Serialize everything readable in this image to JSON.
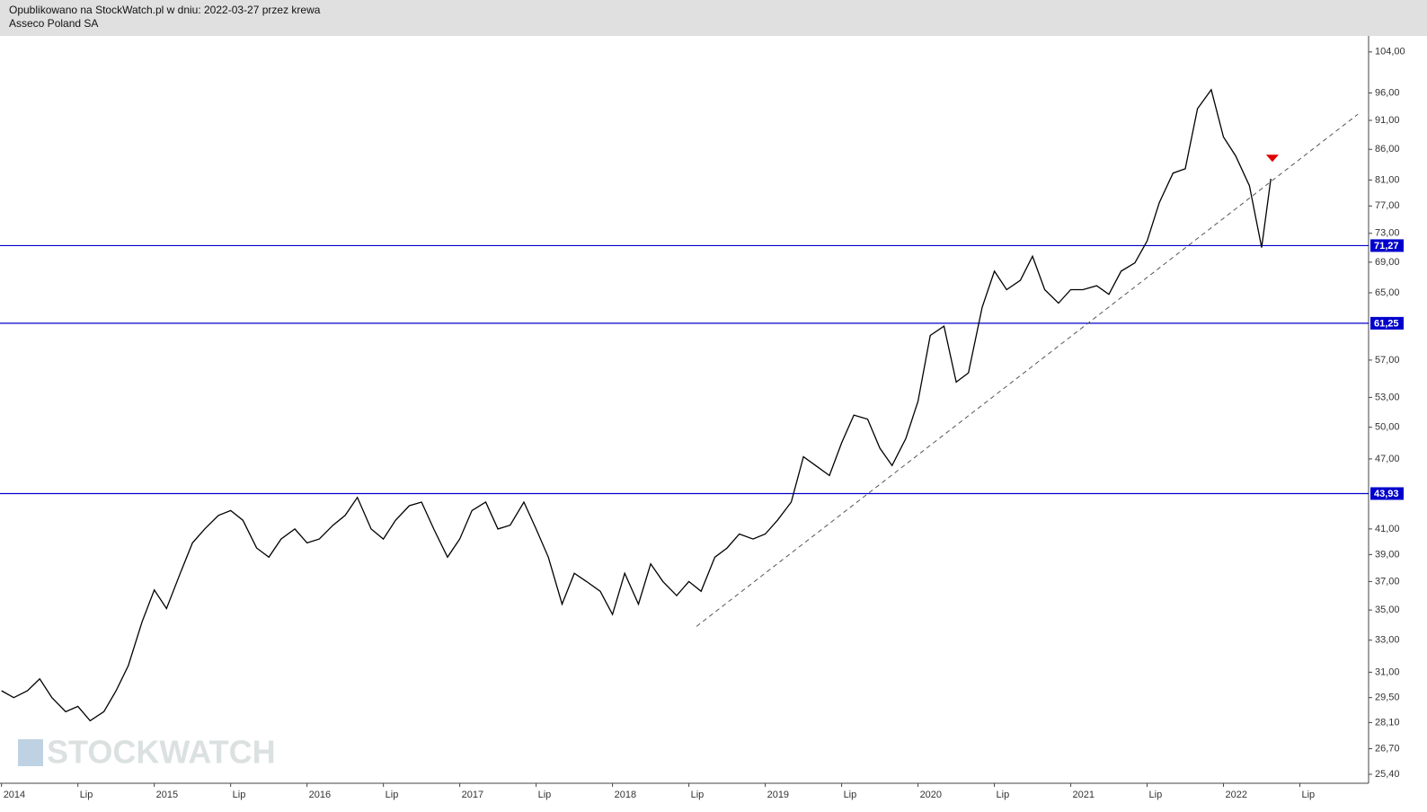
{
  "header": {
    "published": "Opublikowano na StockWatch.pl w dniu: 2022-03-27 przez krewa",
    "instrument": "Asseco Poland SA"
  },
  "watermark": "STOCKWATCH",
  "chart_data": {
    "type": "line",
    "log_scale": true,
    "color": "#000000",
    "x": [
      2014.0,
      2014.08,
      2014.17,
      2014.25,
      2014.33,
      2014.42,
      2014.5,
      2014.58,
      2014.67,
      2014.75,
      2014.83,
      2014.92,
      2015.0,
      2015.08,
      2015.17,
      2015.25,
      2015.33,
      2015.42,
      2015.5,
      2015.58,
      2015.67,
      2015.75,
      2015.83,
      2015.92,
      2016.0,
      2016.08,
      2016.17,
      2016.25,
      2016.33,
      2016.42,
      2016.5,
      2016.58,
      2016.67,
      2016.75,
      2016.83,
      2016.92,
      2017.0,
      2017.08,
      2017.17,
      2017.25,
      2017.33,
      2017.42,
      2017.5,
      2017.58,
      2017.67,
      2017.75,
      2017.83,
      2017.92,
      2018.0,
      2018.08,
      2018.17,
      2018.25,
      2018.33,
      2018.42,
      2018.5,
      2018.58,
      2018.67,
      2018.75,
      2018.83,
      2018.92,
      2019.0,
      2019.08,
      2019.17,
      2019.25,
      2019.33,
      2019.42,
      2019.5,
      2019.58,
      2019.67,
      2019.75,
      2019.83,
      2019.92,
      2020.0,
      2020.08,
      2020.17,
      2020.25,
      2020.33,
      2020.42,
      2020.5,
      2020.58,
      2020.67,
      2020.75,
      2020.83,
      2020.92,
      2021.0,
      2021.08,
      2021.17,
      2021.25,
      2021.33,
      2021.42,
      2021.5,
      2021.58,
      2021.67,
      2021.75,
      2021.83,
      2021.92,
      2022.0,
      2022.08,
      2022.17,
      2022.25,
      2022.31
    ],
    "values": [
      29.9,
      29.5,
      29.9,
      30.6,
      29.5,
      28.7,
      29,
      28.2,
      28.7,
      29.9,
      31.4,
      34.2,
      36.4,
      35.1,
      37.6,
      39.9,
      41,
      42.1,
      42.5,
      41.7,
      39.5,
      38.8,
      40.2,
      41,
      39.9,
      40.2,
      41.3,
      42.1,
      43.6,
      41,
      40.2,
      41.7,
      42.9,
      43.2,
      41,
      38.8,
      40.2,
      42.5,
      43.2,
      41,
      41.3,
      43.2,
      41,
      38.8,
      35.4,
      37.6,
      37,
      36.3,
      34.7,
      37.6,
      35.4,
      38.3,
      37,
      36,
      37,
      36.3,
      38.8,
      39.5,
      40.6,
      40.2,
      40.6,
      41.7,
      43.2,
      47.2,
      46.4,
      45.5,
      48.5,
      51.2,
      50.8,
      48,
      46.4,
      48.9,
      52.6,
      59.8,
      60.9,
      54.6,
      55.6,
      63.2,
      67.8,
      65.4,
      66.6,
      69.8,
      65.4,
      63.7,
      65.4,
      65.4,
      65.9,
      64.8,
      67.8,
      68.9,
      71.9,
      77.5,
      82.1,
      82.8,
      93.1,
      96.6,
      88.1,
      84.9,
      80.1,
      71,
      81.2
    ],
    "xlim": [
      2013.99,
      2022.95
    ],
    "ylim": [
      24.96,
      107.3
    ],
    "xticks": [
      {
        "value": 2014,
        "label": "2014"
      },
      {
        "value": 2014.5,
        "label": "Lip"
      },
      {
        "value": 2015,
        "label": "2015"
      },
      {
        "value": 2015.5,
        "label": "Lip"
      },
      {
        "value": 2016,
        "label": "2016"
      },
      {
        "value": 2016.5,
        "label": "Lip"
      },
      {
        "value": 2017,
        "label": "2017"
      },
      {
        "value": 2017.5,
        "label": "Lip"
      },
      {
        "value": 2018,
        "label": "2018"
      },
      {
        "value": 2018.5,
        "label": "Lip"
      },
      {
        "value": 2019,
        "label": "2019"
      },
      {
        "value": 2019.5,
        "label": "Lip"
      },
      {
        "value": 2020,
        "label": "2020"
      },
      {
        "value": 2020.5,
        "label": "Lip"
      },
      {
        "value": 2021,
        "label": "2021"
      },
      {
        "value": 2021.5,
        "label": "Lip"
      },
      {
        "value": 2022,
        "label": "2022"
      },
      {
        "value": 2022.5,
        "label": "Lip"
      }
    ],
    "yticks": [
      {
        "value": 104,
        "label": "104,00"
      },
      {
        "value": 96,
        "label": "96,00"
      },
      {
        "value": 91,
        "label": "91,00"
      },
      {
        "value": 86,
        "label": "86,00"
      },
      {
        "value": 81,
        "label": "81,00"
      },
      {
        "value": 77,
        "label": "77,00"
      },
      {
        "value": 73,
        "label": "73,00"
      },
      {
        "value": 69,
        "label": "69,00"
      },
      {
        "value": 65,
        "label": "65,00"
      },
      {
        "value": 57,
        "label": "57,00"
      },
      {
        "value": 53,
        "label": "53,00"
      },
      {
        "value": 50,
        "label": "50,00"
      },
      {
        "value": 47,
        "label": "47,00"
      },
      {
        "value": 41,
        "label": "41,00"
      },
      {
        "value": 39,
        "label": "39,00"
      },
      {
        "value": 37,
        "label": "37,00"
      },
      {
        "value": 35,
        "label": "35,00"
      },
      {
        "value": 33,
        "label": "33,00"
      },
      {
        "value": 31,
        "label": "31,00"
      },
      {
        "value": 29.5,
        "label": "29,50"
      },
      {
        "value": 28.1,
        "label": "28,10"
      },
      {
        "value": 26.7,
        "label": "26,70"
      },
      {
        "value": 25.4,
        "label": "25,40"
      }
    ],
    "levels": [
      {
        "value": 71.27,
        "label": "71,27"
      },
      {
        "value": 61.25,
        "label": "61,25"
      },
      {
        "value": 43.93,
        "label": "43,93"
      }
    ],
    "level_color": "#0000cc",
    "trendline": {
      "x": [
        2018.55,
        2022.88
      ],
      "values": [
        33.9,
        92.1
      ]
    },
    "marker": {
      "x": 2022.32,
      "value": 84.5,
      "color": "#e00000"
    }
  }
}
